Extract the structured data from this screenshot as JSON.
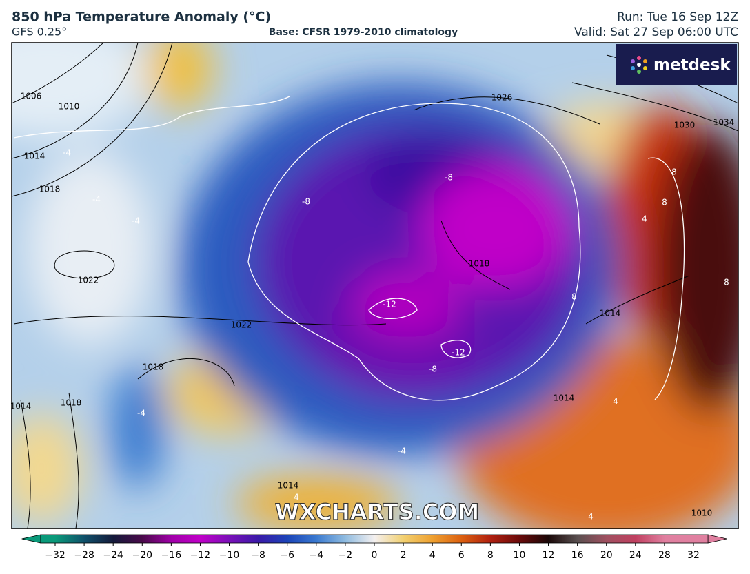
{
  "header": {
    "title": "850 hPa Temperature Anomaly (°C)",
    "model": "GFS 0.25°",
    "base": "Base: CFSR 1979-2010 climatology",
    "run": "Run: Tue 16 Sep 12Z",
    "valid": "Valid: Sat 27 Sep 06:00 UTC"
  },
  "logo": "metdesk",
  "watermark": "WXCHARTS.COM",
  "map": {
    "isobar_labels": [
      "1006",
      "1010",
      "1014",
      "1018",
      "1022",
      "1022",
      "1018",
      "1014",
      "1018",
      "1026",
      "1030",
      "1034",
      "1018",
      "1014",
      "1014",
      "1010",
      "1014"
    ],
    "anomaly_labels": [
      "-4",
      "-4",
      "-4",
      "-8",
      "-8",
      "-12",
      "-12",
      "-8",
      "8",
      "8",
      "8",
      "8",
      "4",
      "-4",
      "-4",
      "4",
      "4",
      "4"
    ]
  },
  "colorbar": {
    "ticks": [
      {
        "value": -32,
        "label": "−32"
      },
      {
        "value": -28,
        "label": "−28"
      },
      {
        "value": -24,
        "label": "−24"
      },
      {
        "value": -20,
        "label": "−20"
      },
      {
        "value": -16,
        "label": "−16"
      },
      {
        "value": -12,
        "label": "−12"
      },
      {
        "value": -10,
        "label": "−10"
      },
      {
        "value": -8,
        "label": "−8"
      },
      {
        "value": -6,
        "label": "−6"
      },
      {
        "value": -4,
        "label": "−4"
      },
      {
        "value": -2,
        "label": "−2"
      },
      0,
      2,
      4,
      6,
      8,
      10,
      12,
      16,
      20,
      24,
      28,
      32
    ],
    "colors": [
      "#0a9a7a",
      "#10506a",
      "#141a3a",
      "#4a0a4a",
      "#a000a8",
      "#c000c8",
      "#7a10b8",
      "#3a1aa8",
      "#1c44b8",
      "#3a7ad0",
      "#90bce0",
      "#f4f0f0",
      "#f2d070",
      "#eea030",
      "#dc6010",
      "#b02010",
      "#6a0a0a",
      "#1a0808",
      "#5a5050",
      "#a05060",
      "#c04060",
      "#e080a0"
    ]
  }
}
